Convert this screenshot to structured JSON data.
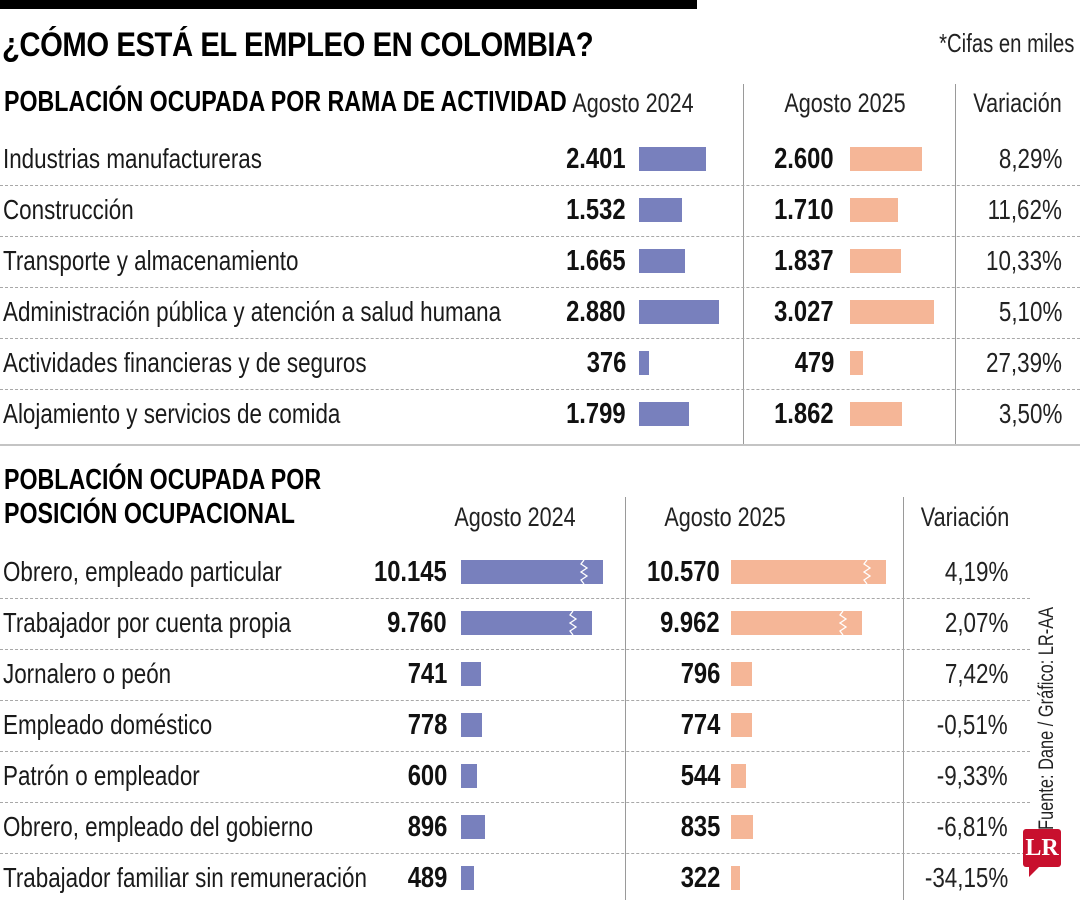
{
  "header": {
    "title": "¿CÓMO ESTÁ EL EMPLEO EN COLOMBIA?",
    "note": "*Cifas en miles"
  },
  "footer": {
    "source": "Fuente: Dane / Gráfico: LR-AA",
    "logo": "LR"
  },
  "colors": {
    "agosto_2024": "#7880bd",
    "agosto_2025": "#f5b697",
    "logo": "#c8102e"
  },
  "chart_data": [
    {
      "type": "table",
      "title": "POBLACIÓN OCUPADA POR RAMA DE ACTIVIDAD",
      "columns": [
        "Agosto 2024",
        "Agosto 2025",
        "Variación"
      ],
      "units": "miles",
      "rows": [
        {
          "label": "Industrias manufactureras",
          "v2024": 2401,
          "v2024_text": "2.401",
          "v2025": 2600,
          "v2025_text": "2.600",
          "variation": "8,29%"
        },
        {
          "label": "Construcción",
          "v2024": 1532,
          "v2024_text": "1.532",
          "v2025": 1710,
          "v2025_text": "1.710",
          "variation": "11,62%"
        },
        {
          "label": "Transporte y almacenamiento",
          "v2024": 1665,
          "v2024_text": "1.665",
          "v2025": 1837,
          "v2025_text": "1.837",
          "variation": "10,33%"
        },
        {
          "label": "Administración pública y atención a salud humana",
          "v2024": 2880,
          "v2024_text": "2.880",
          "v2025": 3027,
          "v2025_text": "3.027",
          "variation": "5,10%"
        },
        {
          "label": "Actividades financieras y de seguros",
          "v2024": 376,
          "v2024_text": "376",
          "v2025": 479,
          "v2025_text": "479",
          "variation": "27,39%"
        },
        {
          "label": "Alojamiento y servicios de comida",
          "v2024": 1799,
          "v2024_text": "1.799",
          "v2025": 1862,
          "v2025_text": "1.862",
          "variation": "3,50%"
        }
      ]
    },
    {
      "type": "table",
      "title_line1": "POBLACIÓN OCUPADA POR",
      "title_line2": "POSICIÓN OCUPACIONAL",
      "columns": [
        "Agosto 2024",
        "Agosto 2025",
        "Variación"
      ],
      "units": "miles",
      "rows": [
        {
          "label": "Obrero, empleado particular",
          "v2024": 10145,
          "v2024_text": "10.145",
          "v2025": 10570,
          "v2025_text": "10.570",
          "variation": "4,19%",
          "truncated": true
        },
        {
          "label": "Trabajador por cuenta propia",
          "v2024": 9760,
          "v2024_text": "9.760",
          "v2025": 9962,
          "v2025_text": "9.962",
          "variation": "2,07%",
          "truncated": true
        },
        {
          "label": "Jornalero o peón",
          "v2024": 741,
          "v2024_text": "741",
          "v2025": 796,
          "v2025_text": "796",
          "variation": "7,42%"
        },
        {
          "label": "Empleado doméstico",
          "v2024": 778,
          "v2024_text": "778",
          "v2025": 774,
          "v2025_text": "774",
          "variation": "-0,51%"
        },
        {
          "label": "Patrón o empleador",
          "v2024": 600,
          "v2024_text": "600",
          "v2025": 544,
          "v2025_text": "544",
          "variation": "-9,33%"
        },
        {
          "label": "Obrero, empleado del gobierno",
          "v2024": 896,
          "v2024_text": "896",
          "v2025": 835,
          "v2025_text": "835",
          "variation": "-6,81%"
        },
        {
          "label": "Trabajador familiar sin remuneración",
          "v2024": 489,
          "v2024_text": "489",
          "v2025": 322,
          "v2025_text": "322",
          "variation": "-34,15%"
        }
      ]
    }
  ]
}
